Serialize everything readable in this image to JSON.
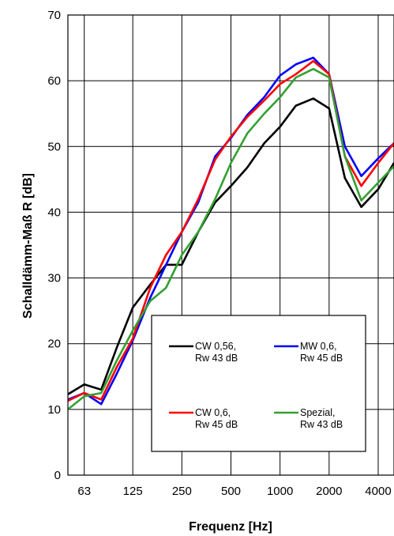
{
  "chart_data": {
    "type": "line",
    "title": "",
    "xlabel": "Frequenz [Hz]",
    "ylabel": "Schalldämm-Maß R [dB]",
    "xscale": "log",
    "xlim": [
      50,
      5000
    ],
    "ylim": [
      0,
      70
    ],
    "x_ticks": [
      63,
      125,
      250,
      500,
      1000,
      2000,
      4000
    ],
    "x_tick_labels": [
      "63",
      "125",
      "250",
      "500",
      "1000",
      "2000",
      "4000"
    ],
    "y_ticks": [
      0,
      10,
      20,
      30,
      40,
      50,
      60,
      70
    ],
    "y_tick_labels": [
      "0",
      "10",
      "20",
      "30",
      "40",
      "50",
      "60",
      "70"
    ],
    "grid": "vertical lines at octave ticks, horizontal lines every 10 dB",
    "legend_position": "lower-right",
    "x": [
      50,
      63,
      80,
      100,
      125,
      160,
      200,
      250,
      315,
      400,
      500,
      630,
      800,
      1000,
      1250,
      1600,
      2000,
      2500,
      3150,
      4000,
      5000
    ],
    "series": [
      {
        "name_line1": "CW 0,56,",
        "name_line2": "Rw 43 dB",
        "color": "#000000",
        "values": [
          12.3,
          13.8,
          13.0,
          19.5,
          25.5,
          29.0,
          32.0,
          32.0,
          37.0,
          41.5,
          44.0,
          46.8,
          50.5,
          53.0,
          56.2,
          57.3,
          55.8,
          45.2,
          40.8,
          43.5,
          47.5
        ]
      },
      {
        "name_line1": "MW 0,6,",
        "name_line2": "Rw 45 dB",
        "color": "#0000ff",
        "values": [
          11.5,
          12.5,
          10.8,
          15.5,
          20.5,
          27.0,
          32.0,
          37.0,
          41.5,
          48.5,
          51.3,
          54.8,
          57.5,
          60.8,
          62.5,
          63.5,
          61.0,
          50.0,
          45.5,
          48.2,
          50.5
        ]
      },
      {
        "name_line1": "CW 0,6,",
        "name_line2": "Rw 45 dB",
        "color": "#ff0000",
        "values": [
          11.3,
          12.5,
          11.5,
          16.5,
          20.8,
          28.5,
          33.5,
          37.0,
          42.0,
          48.0,
          51.5,
          54.5,
          57.0,
          59.5,
          61.0,
          63.0,
          61.0,
          48.5,
          44.0,
          47.5,
          50.5
        ]
      },
      {
        "name_line1": "Spezial,",
        "name_line2": "Rw 43 dB",
        "color": "#33a033",
        "values": [
          10.0,
          12.0,
          12.5,
          17.5,
          22.0,
          26.5,
          28.5,
          33.5,
          37.0,
          42.0,
          47.5,
          52.0,
          55.0,
          57.5,
          60.5,
          61.8,
          60.5,
          48.5,
          41.8,
          44.5,
          47.0
        ]
      }
    ]
  }
}
